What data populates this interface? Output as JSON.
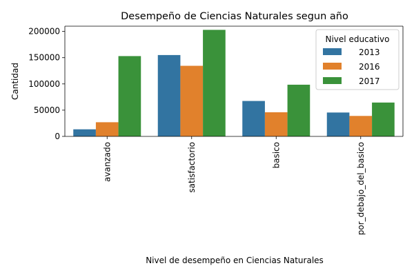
{
  "chart_data": {
    "type": "bar",
    "title": "Desempeño de Ciencias Naturales segun año",
    "xlabel": "Nivel de desempeño en Ciencias Naturales",
    "ylabel": "Cantidad",
    "categories": [
      "avanzado",
      "satisfactorio",
      "basico",
      "por_debajo_del_basico"
    ],
    "yticks": [
      0,
      50000,
      100000,
      150000,
      200000
    ],
    "ylim": [
      0,
      210000
    ],
    "grid": false,
    "legend": {
      "title": "Nivel educativo",
      "placement": "top-right"
    },
    "series": [
      {
        "name": "2013",
        "color": "#3274a1",
        "values": [
          13500,
          155000,
          67500,
          45500
        ]
      },
      {
        "name": "2016",
        "color": "#e1812c",
        "values": [
          27000,
          134500,
          46000,
          39000
        ]
      },
      {
        "name": "2017",
        "color": "#3a923a",
        "values": [
          153000,
          203000,
          98500,
          64500
        ]
      }
    ]
  }
}
